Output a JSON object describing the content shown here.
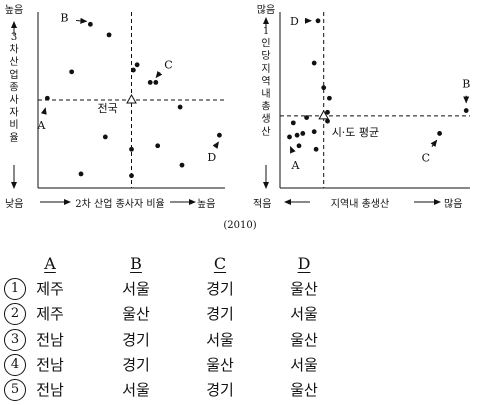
{
  "year_note": "(2010)",
  "chart_data": [
    {
      "type": "scatter",
      "ylabel": "3차 산업 종사자 비율",
      "y_high": "높음",
      "xlabel": "2차 산업 종사자 비율",
      "x_low": "낮음",
      "x_high": "높음",
      "reference_label": "전국",
      "reference": {
        "x": 5.0,
        "y": 5.0
      },
      "xlim": [
        0,
        10
      ],
      "ylim": [
        0,
        10
      ],
      "points": [
        {
          "label": "B",
          "x": 2.8,
          "y": 9.3
        },
        {
          "label": "",
          "x": 3.8,
          "y": 8.7
        },
        {
          "label": "",
          "x": 1.8,
          "y": 6.6
        },
        {
          "label": "",
          "x": 5.1,
          "y": 6.7
        },
        {
          "label": "",
          "x": 5.3,
          "y": 7.0
        },
        {
          "label": "C",
          "x": 6.0,
          "y": 6.0
        },
        {
          "label": "",
          "x": 6.3,
          "y": 6.0
        },
        {
          "label": "A",
          "x": 0.5,
          "y": 5.1
        },
        {
          "label": "",
          "x": 7.6,
          "y": 4.6
        },
        {
          "label": "",
          "x": 3.6,
          "y": 2.9
        },
        {
          "label": "",
          "x": 6.4,
          "y": 2.4
        },
        {
          "label": "",
          "x": 5.0,
          "y": 2.2
        },
        {
          "label": "D",
          "x": 9.7,
          "y": 3.0
        },
        {
          "label": "",
          "x": 2.3,
          "y": 0.8
        },
        {
          "label": "",
          "x": 7.7,
          "y": 1.3
        },
        {
          "label": "",
          "x": 5.0,
          "y": 0.7
        }
      ]
    },
    {
      "type": "scatter",
      "ylabel": "1인당 지역내 총생산",
      "y_high": "많음",
      "xlabel": "지역내 총생산",
      "x_low": "적음",
      "x_high": "많음",
      "reference_label": "시·도 평균",
      "reference": {
        "x": 2.3,
        "y": 4.1
      },
      "xlim": [
        0,
        10
      ],
      "ylim": [
        0,
        10
      ],
      "points": [
        {
          "label": "D",
          "x": 2.0,
          "y": 9.5
        },
        {
          "label": "B",
          "x": 9.8,
          "y": 4.4
        },
        {
          "label": "C",
          "x": 8.4,
          "y": 3.1
        },
        {
          "label": "A",
          "x": 0.5,
          "y": 2.9
        },
        {
          "label": "",
          "x": 1.8,
          "y": 7.1
        },
        {
          "label": "",
          "x": 2.3,
          "y": 5.7
        },
        {
          "label": "",
          "x": 2.6,
          "y": 5.1
        },
        {
          "label": "",
          "x": 2.5,
          "y": 4.3
        },
        {
          "label": "",
          "x": 1.4,
          "y": 4.0
        },
        {
          "label": "",
          "x": 0.7,
          "y": 3.7
        },
        {
          "label": "",
          "x": 0.9,
          "y": 3.0
        },
        {
          "label": "",
          "x": 1.2,
          "y": 3.1
        },
        {
          "label": "",
          "x": 1.0,
          "y": 2.4
        },
        {
          "label": "",
          "x": 1.9,
          "y": 2.2
        },
        {
          "label": "",
          "x": 1.8,
          "y": 3.2
        },
        {
          "label": "",
          "x": 2.5,
          "y": 3.8
        }
      ]
    }
  ],
  "choices": {
    "headers": [
      "A",
      "B",
      "C",
      "D"
    ],
    "rows": [
      {
        "num": "1",
        "cells": [
          "제주",
          "서울",
          "경기",
          "울산"
        ]
      },
      {
        "num": "2",
        "cells": [
          "제주",
          "울산",
          "경기",
          "서울"
        ]
      },
      {
        "num": "3",
        "cells": [
          "전남",
          "경기",
          "서울",
          "울산"
        ]
      },
      {
        "num": "4",
        "cells": [
          "전남",
          "경기",
          "울산",
          "서울"
        ]
      },
      {
        "num": "5",
        "cells": [
          "전남",
          "서울",
          "경기",
          "울산"
        ]
      }
    ]
  }
}
